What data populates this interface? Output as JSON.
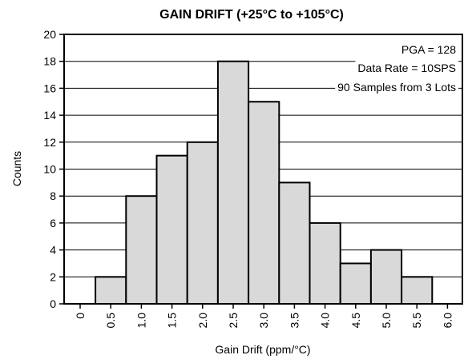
{
  "chart_data": {
    "type": "bar",
    "title": "GAIN DRIFT (+25°C to +105°C)",
    "xlabel": "Gain Drift (ppm/°C)",
    "ylabel": "Counts",
    "categories": [
      "0",
      "0.5",
      "1.0",
      "1.5",
      "2.0",
      "2.5",
      "3.0",
      "3.5",
      "4.0",
      "4.5",
      "5.0",
      "5.5",
      "6.0"
    ],
    "values": [
      0,
      2,
      8,
      11,
      12,
      18,
      15,
      9,
      6,
      3,
      4,
      2,
      0
    ],
    "ylim": [
      0,
      20
    ],
    "yticks": [
      "0",
      "2",
      "4",
      "6",
      "8",
      "10",
      "12",
      "14",
      "16",
      "18",
      "20"
    ],
    "grid": "horizontal",
    "bar_color": "#d9d9d9",
    "annotations": [
      "PGA = 128",
      "Data Rate = 10SPS",
      "90 Samples from 3 Lots"
    ],
    "annotation_position": "top-right"
  }
}
